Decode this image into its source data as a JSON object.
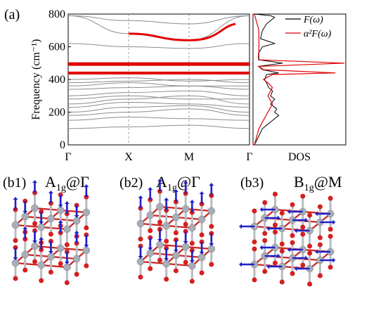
{
  "panel_a": {
    "label": "(a)",
    "ylabel": "Frequency (cm⁻¹)",
    "dos_label": "DOS",
    "legend": [
      {
        "text": "F(ω)",
        "color": "#000000"
      },
      {
        "text": "α²F(ω)",
        "color": "#e00000"
      }
    ]
  },
  "panels_b": [
    {
      "label": "(b1)",
      "mode_main": "A",
      "mode_sub": "1g",
      "mode_at": "@Γ",
      "arrow_style": "vertical-mixed"
    },
    {
      "label": "(b2)",
      "mode_main": "A",
      "mode_sub": "1g",
      "mode_at": "@Γ",
      "arrow_style": "vertical-aligned"
    },
    {
      "label": "(b3)",
      "mode_main": "B",
      "mode_sub": "1g",
      "mode_at": "@M",
      "arrow_style": "horizontal"
    }
  ],
  "colors": {
    "band_gray": "#8c8c8c",
    "band_red": "#e00000",
    "atom_red": "#d42020",
    "atom_gray": "#a8aeb8",
    "bond_red": "#cc2222",
    "arrow_blue": "#2020c8"
  },
  "chart_data": {
    "type": "line",
    "x_ticks": [
      "Γ",
      "X",
      "M",
      "Γ"
    ],
    "x_positions": [
      0,
      1,
      2,
      3
    ],
    "ylim": [
      0,
      800
    ],
    "y_ticks": [
      0,
      200,
      400,
      600,
      800
    ],
    "series": [
      {
        "values": [
          100,
          110,
          120,
          100
        ]
      },
      {
        "values": [
          150,
          170,
          160,
          150
        ]
      },
      {
        "values": [
          180,
          200,
          220,
          180
        ]
      },
      {
        "values": [
          200,
          230,
          240,
          200
        ]
      },
      {
        "values": [
          230,
          260,
          250,
          230
        ]
      },
      {
        "values": [
          250,
          280,
          300,
          250
        ]
      },
      {
        "values": [
          280,
          300,
          280,
          280
        ]
      },
      {
        "values": [
          300,
          320,
          330,
          300
        ]
      },
      {
        "values": [
          340,
          350,
          360,
          340
        ]
      },
      {
        "values": [
          360,
          380,
          360,
          360
        ]
      },
      {
        "values": [
          380,
          390,
          400,
          380
        ]
      },
      {
        "values": [
          400,
          410,
          390,
          400
        ]
      },
      {
        "values": [
          440,
          445,
          440,
          440
        ]
      },
      {
        "values": [
          500,
          500,
          500,
          500
        ]
      },
      {
        "values": [
          620,
          600,
          590,
          620
        ]
      },
      {
        "values": [
          790,
          680,
          640,
          790
        ]
      },
      {
        "values": [
          790,
          760,
          740,
          790
        ]
      }
    ],
    "dos": {
      "ylim": [
        0,
        800
      ],
      "F": {
        "freq": [
          0,
          50,
          100,
          130,
          150,
          180,
          200,
          220,
          250,
          280,
          300,
          330,
          350,
          380,
          400,
          430,
          440,
          460,
          480,
          500,
          520,
          560,
          600,
          620,
          650,
          700,
          740,
          780,
          790,
          800
        ],
        "values": [
          0,
          0.1,
          0.2,
          0.35,
          0.45,
          0.6,
          0.5,
          0.55,
          0.4,
          0.5,
          0.4,
          0.45,
          0.35,
          0.3,
          0.25,
          0.3,
          0.6,
          0.2,
          0.1,
          0.7,
          0.1,
          0.1,
          0.2,
          0.5,
          0.15,
          0.2,
          0.3,
          0.5,
          0.4,
          0
        ]
      },
      "a2F": {
        "freq": [
          0,
          100,
          150,
          200,
          250,
          300,
          350,
          380,
          400,
          430,
          440,
          460,
          480,
          500,
          520,
          600,
          650,
          700,
          800
        ],
        "values": [
          0,
          0.05,
          0.1,
          0.15,
          0.2,
          0.15,
          0.2,
          0.15,
          0.1,
          0.2,
          0.9,
          0.1,
          0.05,
          1.0,
          0.05,
          0.05,
          0.05,
          0.05,
          0
        ]
      }
    }
  }
}
